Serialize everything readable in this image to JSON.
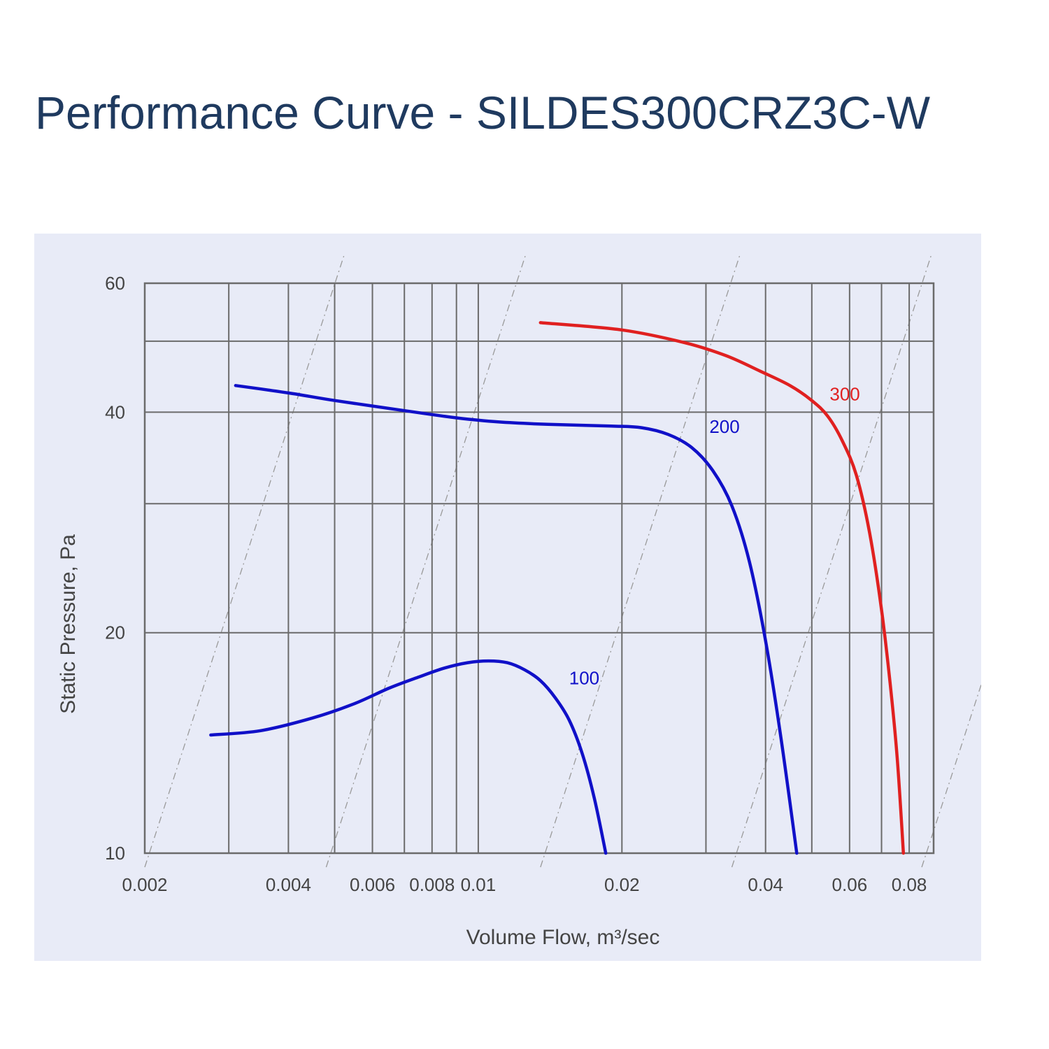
{
  "title": "Performance Curve - SILDES300CRZ3C-W",
  "colors": {
    "title": "#1f3a5f",
    "background": "#e8ebf7",
    "grid": "#6b6b6b",
    "low_speed": "#1010c8",
    "high_speed": "#e02020"
  },
  "chart_data": {
    "type": "line",
    "title": "Performance Curve - SILDES300CRZ3C-W",
    "xlabel": "Volume Flow, m³/sec",
    "ylabel": "Static Pressure, Pa",
    "x_scale": "log",
    "y_scale": "log",
    "xlim": [
      0.002,
      0.09
    ],
    "ylim": [
      10,
      60
    ],
    "x_ticks": [
      {
        "value": 0.002,
        "label": "0.002"
      },
      {
        "value": 0.004,
        "label": "0.004"
      },
      {
        "value": 0.006,
        "label": "0.006"
      },
      {
        "value": 0.008,
        "label": "0.008"
      },
      {
        "value": 0.01,
        "label": "0.01"
      },
      {
        "value": 0.02,
        "label": "0.02"
      },
      {
        "value": 0.04,
        "label": "0.04"
      },
      {
        "value": 0.06,
        "label": "0.06"
      },
      {
        "value": 0.08,
        "label": "0.08"
      }
    ],
    "y_ticks": [
      {
        "value": 10,
        "label": "10"
      },
      {
        "value": 20,
        "label": "20"
      },
      {
        "value": 40,
        "label": "40"
      },
      {
        "value": 60,
        "label": "60"
      }
    ],
    "x_grid": [
      0.003,
      0.004,
      0.005,
      0.006,
      0.007,
      0.008,
      0.009,
      0.01,
      0.02,
      0.03,
      0.04,
      0.05,
      0.06,
      0.07,
      0.08
    ],
    "y_grid": [
      20,
      30,
      40,
      50
    ],
    "grid": true,
    "system_lines": [
      0.002,
      0.0048,
      0.0135,
      0.034,
      0.085
    ],
    "series": [
      {
        "name": "100",
        "color": "#1010c8",
        "label_at": [
          0.0155,
          17.0
        ],
        "points": [
          [
            0.00275,
            14.5
          ],
          [
            0.0035,
            14.7
          ],
          [
            0.0045,
            15.3
          ],
          [
            0.0055,
            16.0
          ],
          [
            0.0065,
            16.8
          ],
          [
            0.0075,
            17.4
          ],
          [
            0.0085,
            17.9
          ],
          [
            0.0095,
            18.2
          ],
          [
            0.0105,
            18.3
          ],
          [
            0.0115,
            18.2
          ],
          [
            0.0125,
            17.8
          ],
          [
            0.0135,
            17.2
          ],
          [
            0.0145,
            16.3
          ],
          [
            0.0155,
            15.2
          ],
          [
            0.0165,
            13.7
          ],
          [
            0.0175,
            11.9
          ],
          [
            0.0185,
            10.0
          ]
        ]
      },
      {
        "name": "200",
        "color": "#1010c8",
        "label_at": [
          0.0305,
          37.5
        ],
        "points": [
          [
            0.0031,
            43.5
          ],
          [
            0.004,
            42.5
          ],
          [
            0.005,
            41.5
          ],
          [
            0.007,
            40.2
          ],
          [
            0.009,
            39.3
          ],
          [
            0.011,
            38.8
          ],
          [
            0.014,
            38.5
          ],
          [
            0.019,
            38.3
          ],
          [
            0.022,
            38.1
          ],
          [
            0.025,
            37.3
          ],
          [
            0.028,
            35.8
          ],
          [
            0.031,
            33.3
          ],
          [
            0.034,
            29.8
          ],
          [
            0.037,
            25.0
          ],
          [
            0.04,
            19.5
          ],
          [
            0.043,
            14.5
          ],
          [
            0.0465,
            10.0
          ]
        ]
      },
      {
        "name": "300",
        "color": "#e02020",
        "label_at": [
          0.0545,
          41.5
        ],
        "points": [
          [
            0.0135,
            53.0
          ],
          [
            0.02,
            51.8
          ],
          [
            0.027,
            49.8
          ],
          [
            0.033,
            47.8
          ],
          [
            0.039,
            45.5
          ],
          [
            0.045,
            43.5
          ],
          [
            0.05,
            41.5
          ],
          [
            0.054,
            39.5
          ],
          [
            0.058,
            36.5
          ],
          [
            0.062,
            32.8
          ],
          [
            0.066,
            27.5
          ],
          [
            0.07,
            21.5
          ],
          [
            0.073,
            17.0
          ],
          [
            0.0755,
            13.5
          ],
          [
            0.0778,
            10.0
          ]
        ]
      }
    ]
  }
}
